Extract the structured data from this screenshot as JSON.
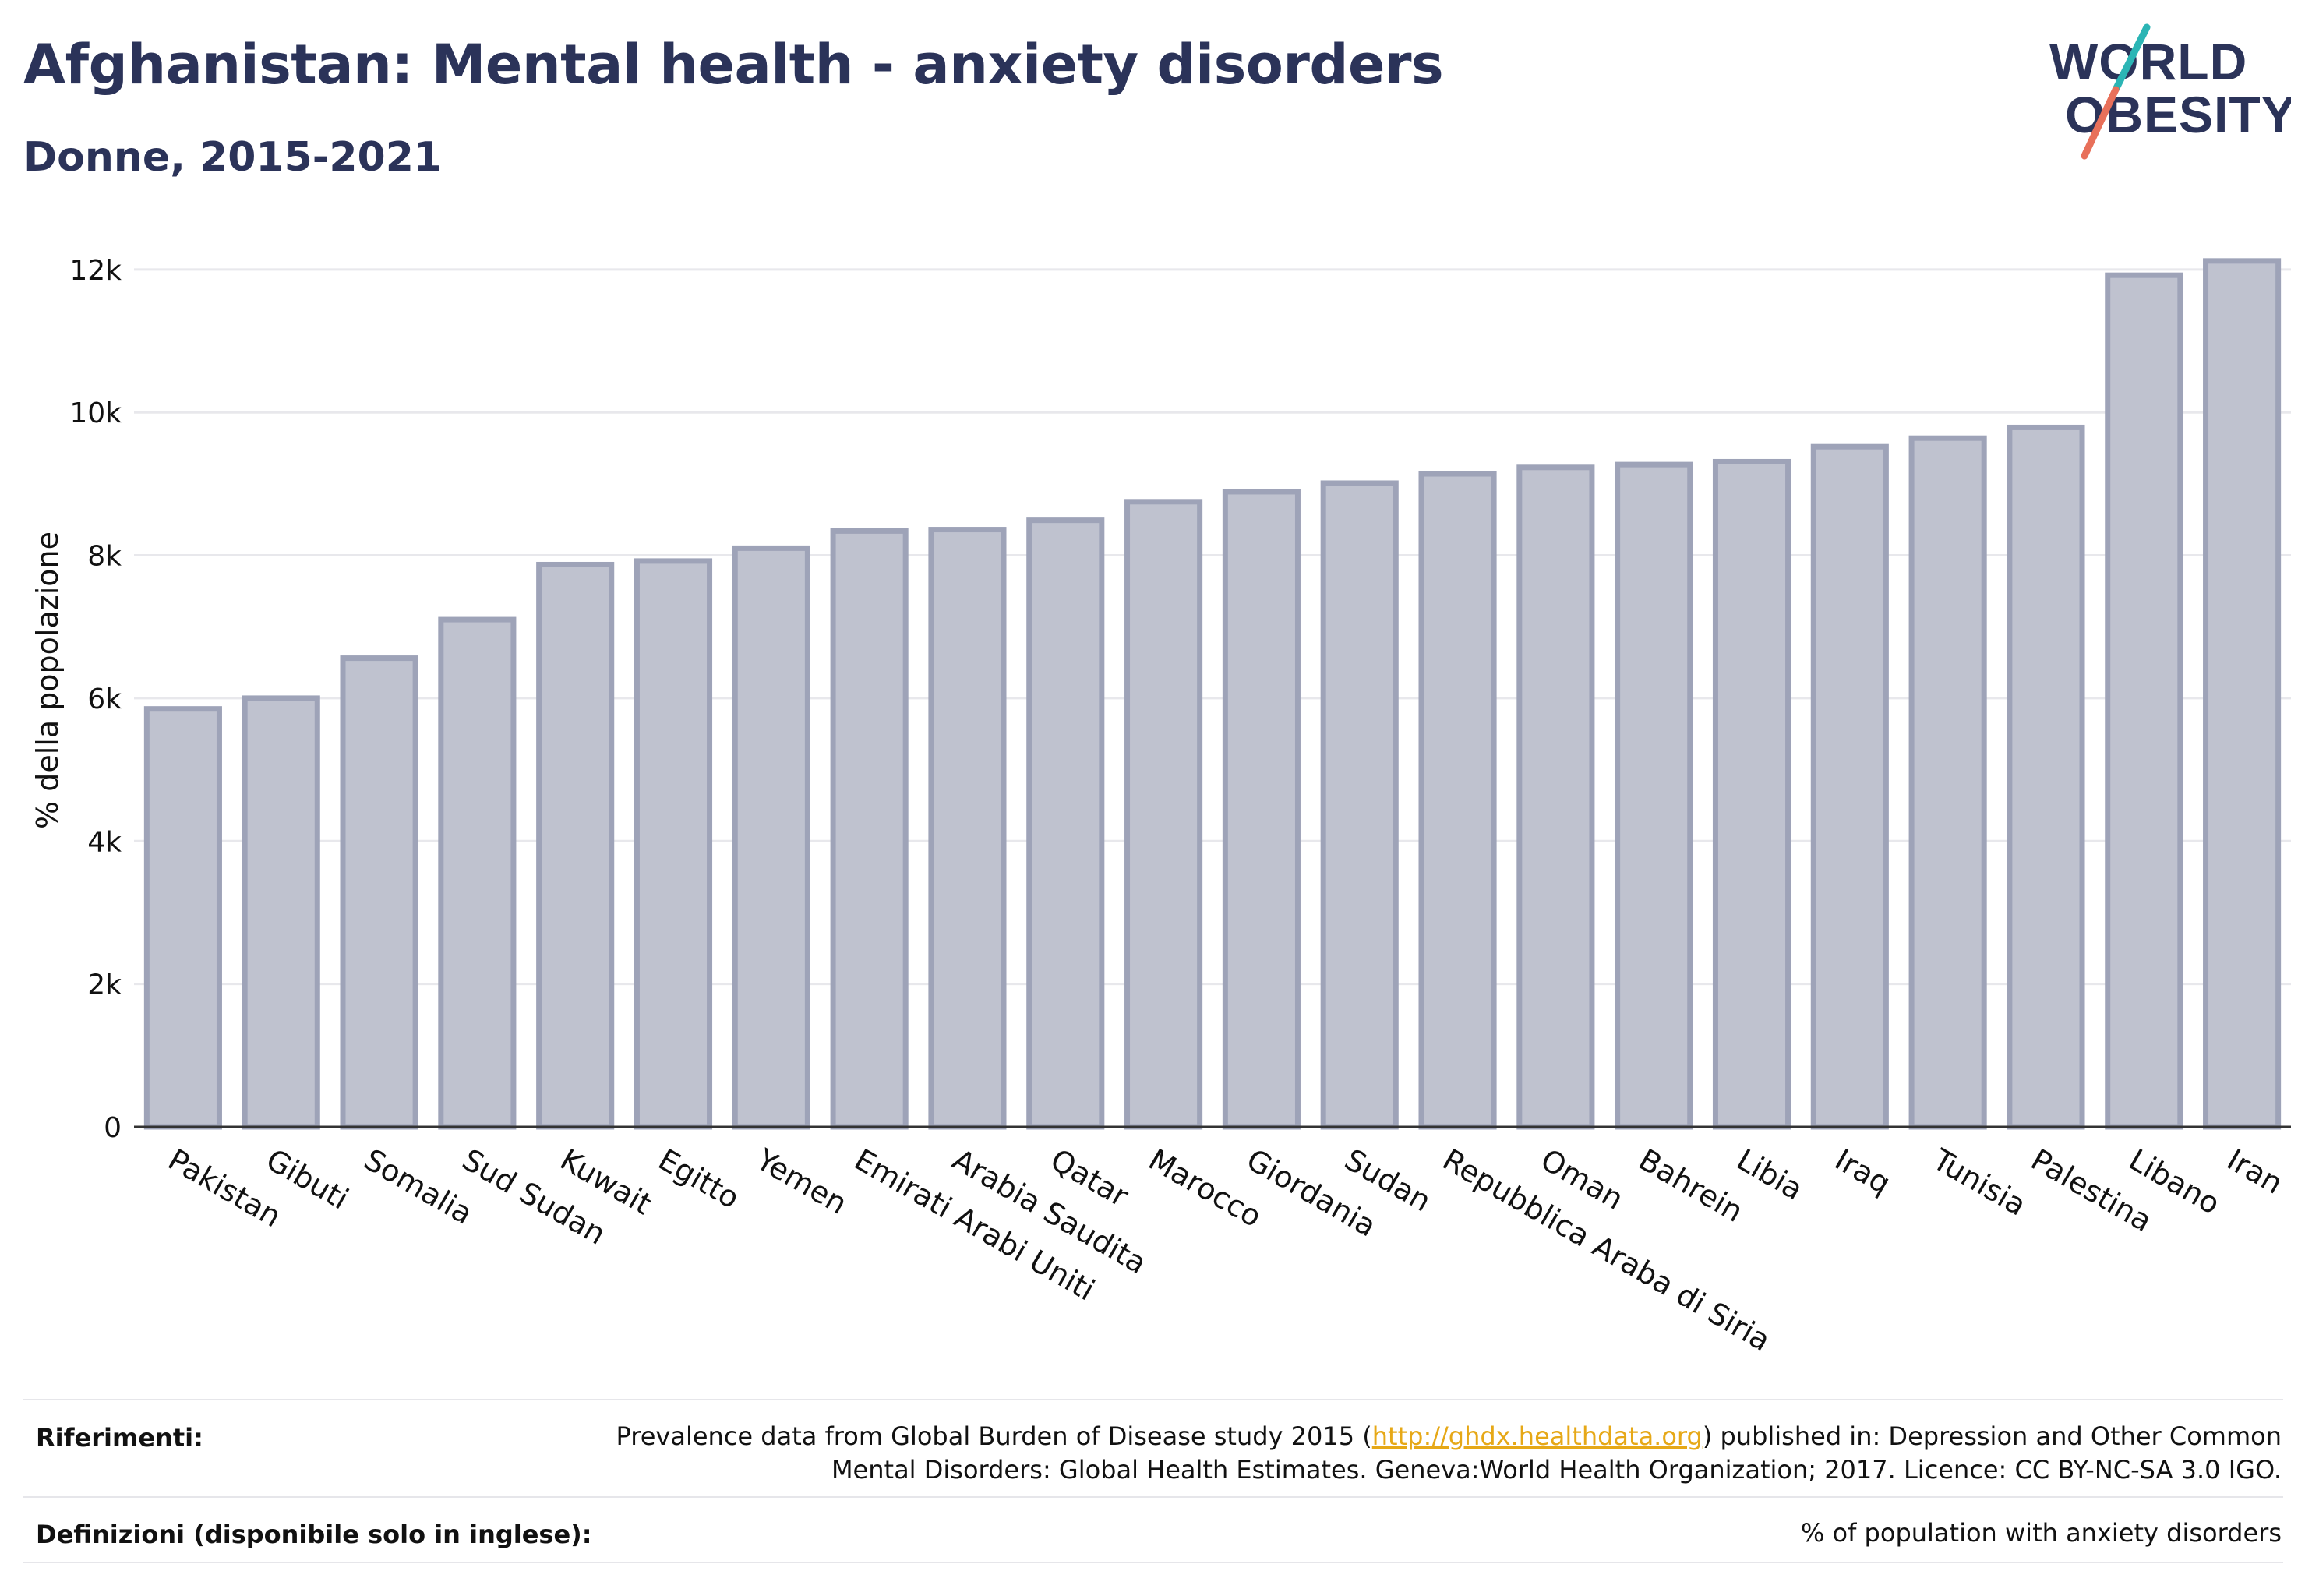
{
  "header": {
    "title": "Afghanistan: Mental health - anxiety disorders",
    "subtitle": "Donne, 2015-2021"
  },
  "logo": {
    "line1": "WORLD",
    "line2": "OBESITY"
  },
  "chart_data": {
    "type": "bar",
    "ylabel": "% della popolazione",
    "xlabel": "",
    "ylim": [
      0,
      12500
    ],
    "yticks": [
      0,
      2000,
      4000,
      6000,
      8000,
      10000,
      12000
    ],
    "ytick_labels": [
      "0",
      "2k",
      "4k",
      "6k",
      "8k",
      "10k",
      "12k"
    ],
    "grid": true,
    "categories": [
      "Pakistan",
      "Gibuti",
      "Somalia",
      "Sud Sudan",
      "Kuwait",
      "Egitto",
      "Yemen",
      "Emirati Arabi Uniti",
      "Arabia Saudita",
      "Qatar",
      "Marocco",
      "Giordania",
      "Sudan",
      "Repubblica Araba di Siria",
      "Oman",
      "Bahrein",
      "Libia",
      "Iraq",
      "Tunisia",
      "Palestina",
      "Libano",
      "Iran"
    ],
    "values": [
      5850,
      6000,
      6560,
      7100,
      7870,
      7920,
      8100,
      8340,
      8360,
      8490,
      8750,
      8890,
      9010,
      9140,
      9230,
      9270,
      9310,
      9520,
      9640,
      9790,
      11920,
      12120
    ],
    "colors": {
      "bar_fill": "#bfc2cf",
      "bar_stroke": "#9ea3b8",
      "axis": "#333333",
      "grid": "#e8e8ec",
      "title": "#2b3359"
    }
  },
  "footer": {
    "references_label": "Riferimenti:",
    "references_text_before": "Prevalence data from Global Burden of Disease study 2015 (",
    "references_link": "http://ghdx.healthdata.org",
    "references_text_after": ") published in: Depression and Other Common Mental Disorders: Global Health Estimates. Geneva:World Health Organization; 2017. Licence: CC BY-NC-SA 3.0 IGO.",
    "definitions_label": "Definizioni (disponibile solo in inglese):",
    "definitions_text": "% of population with anxiety disorders"
  }
}
